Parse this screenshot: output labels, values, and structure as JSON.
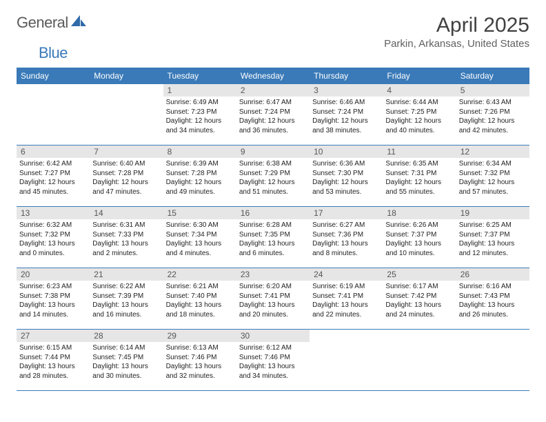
{
  "brand": {
    "part1": "General",
    "part2": "Blue"
  },
  "title": "April 2025",
  "location": "Parkin, Arkansas, United States",
  "calendar": {
    "type": "table",
    "header_bg": "#3a7ab8",
    "header_fg": "#ffffff",
    "daynum_bg": "#e6e6e6",
    "row_border": "#3a7ab8",
    "body_font_size": 10,
    "header_font_size": 12,
    "columns": [
      "Sunday",
      "Monday",
      "Tuesday",
      "Wednesday",
      "Thursday",
      "Friday",
      "Saturday"
    ]
  },
  "days": {
    "1": {
      "num": "1",
      "sunrise": "Sunrise: 6:49 AM",
      "sunset": "Sunset: 7:23 PM",
      "daylight": "Daylight: 12 hours and 34 minutes."
    },
    "2": {
      "num": "2",
      "sunrise": "Sunrise: 6:47 AM",
      "sunset": "Sunset: 7:24 PM",
      "daylight": "Daylight: 12 hours and 36 minutes."
    },
    "3": {
      "num": "3",
      "sunrise": "Sunrise: 6:46 AM",
      "sunset": "Sunset: 7:24 PM",
      "daylight": "Daylight: 12 hours and 38 minutes."
    },
    "4": {
      "num": "4",
      "sunrise": "Sunrise: 6:44 AM",
      "sunset": "Sunset: 7:25 PM",
      "daylight": "Daylight: 12 hours and 40 minutes."
    },
    "5": {
      "num": "5",
      "sunrise": "Sunrise: 6:43 AM",
      "sunset": "Sunset: 7:26 PM",
      "daylight": "Daylight: 12 hours and 42 minutes."
    },
    "6": {
      "num": "6",
      "sunrise": "Sunrise: 6:42 AM",
      "sunset": "Sunset: 7:27 PM",
      "daylight": "Daylight: 12 hours and 45 minutes."
    },
    "7": {
      "num": "7",
      "sunrise": "Sunrise: 6:40 AM",
      "sunset": "Sunset: 7:28 PM",
      "daylight": "Daylight: 12 hours and 47 minutes."
    },
    "8": {
      "num": "8",
      "sunrise": "Sunrise: 6:39 AM",
      "sunset": "Sunset: 7:28 PM",
      "daylight": "Daylight: 12 hours and 49 minutes."
    },
    "9": {
      "num": "9",
      "sunrise": "Sunrise: 6:38 AM",
      "sunset": "Sunset: 7:29 PM",
      "daylight": "Daylight: 12 hours and 51 minutes."
    },
    "10": {
      "num": "10",
      "sunrise": "Sunrise: 6:36 AM",
      "sunset": "Sunset: 7:30 PM",
      "daylight": "Daylight: 12 hours and 53 minutes."
    },
    "11": {
      "num": "11",
      "sunrise": "Sunrise: 6:35 AM",
      "sunset": "Sunset: 7:31 PM",
      "daylight": "Daylight: 12 hours and 55 minutes."
    },
    "12": {
      "num": "12",
      "sunrise": "Sunrise: 6:34 AM",
      "sunset": "Sunset: 7:32 PM",
      "daylight": "Daylight: 12 hours and 57 minutes."
    },
    "13": {
      "num": "13",
      "sunrise": "Sunrise: 6:32 AM",
      "sunset": "Sunset: 7:32 PM",
      "daylight": "Daylight: 13 hours and 0 minutes."
    },
    "14": {
      "num": "14",
      "sunrise": "Sunrise: 6:31 AM",
      "sunset": "Sunset: 7:33 PM",
      "daylight": "Daylight: 13 hours and 2 minutes."
    },
    "15": {
      "num": "15",
      "sunrise": "Sunrise: 6:30 AM",
      "sunset": "Sunset: 7:34 PM",
      "daylight": "Daylight: 13 hours and 4 minutes."
    },
    "16": {
      "num": "16",
      "sunrise": "Sunrise: 6:28 AM",
      "sunset": "Sunset: 7:35 PM",
      "daylight": "Daylight: 13 hours and 6 minutes."
    },
    "17": {
      "num": "17",
      "sunrise": "Sunrise: 6:27 AM",
      "sunset": "Sunset: 7:36 PM",
      "daylight": "Daylight: 13 hours and 8 minutes."
    },
    "18": {
      "num": "18",
      "sunrise": "Sunrise: 6:26 AM",
      "sunset": "Sunset: 7:37 PM",
      "daylight": "Daylight: 13 hours and 10 minutes."
    },
    "19": {
      "num": "19",
      "sunrise": "Sunrise: 6:25 AM",
      "sunset": "Sunset: 7:37 PM",
      "daylight": "Daylight: 13 hours and 12 minutes."
    },
    "20": {
      "num": "20",
      "sunrise": "Sunrise: 6:23 AM",
      "sunset": "Sunset: 7:38 PM",
      "daylight": "Daylight: 13 hours and 14 minutes."
    },
    "21": {
      "num": "21",
      "sunrise": "Sunrise: 6:22 AM",
      "sunset": "Sunset: 7:39 PM",
      "daylight": "Daylight: 13 hours and 16 minutes."
    },
    "22": {
      "num": "22",
      "sunrise": "Sunrise: 6:21 AM",
      "sunset": "Sunset: 7:40 PM",
      "daylight": "Daylight: 13 hours and 18 minutes."
    },
    "23": {
      "num": "23",
      "sunrise": "Sunrise: 6:20 AM",
      "sunset": "Sunset: 7:41 PM",
      "daylight": "Daylight: 13 hours and 20 minutes."
    },
    "24": {
      "num": "24",
      "sunrise": "Sunrise: 6:19 AM",
      "sunset": "Sunset: 7:41 PM",
      "daylight": "Daylight: 13 hours and 22 minutes."
    },
    "25": {
      "num": "25",
      "sunrise": "Sunrise: 6:17 AM",
      "sunset": "Sunset: 7:42 PM",
      "daylight": "Daylight: 13 hours and 24 minutes."
    },
    "26": {
      "num": "26",
      "sunrise": "Sunrise: 6:16 AM",
      "sunset": "Sunset: 7:43 PM",
      "daylight": "Daylight: 13 hours and 26 minutes."
    },
    "27": {
      "num": "27",
      "sunrise": "Sunrise: 6:15 AM",
      "sunset": "Sunset: 7:44 PM",
      "daylight": "Daylight: 13 hours and 28 minutes."
    },
    "28": {
      "num": "28",
      "sunrise": "Sunrise: 6:14 AM",
      "sunset": "Sunset: 7:45 PM",
      "daylight": "Daylight: 13 hours and 30 minutes."
    },
    "29": {
      "num": "29",
      "sunrise": "Sunrise: 6:13 AM",
      "sunset": "Sunset: 7:46 PM",
      "daylight": "Daylight: 13 hours and 32 minutes."
    },
    "30": {
      "num": "30",
      "sunrise": "Sunrise: 6:12 AM",
      "sunset": "Sunset: 7:46 PM",
      "daylight": "Daylight: 13 hours and 34 minutes."
    }
  },
  "layout": [
    [
      null,
      null,
      "1",
      "2",
      "3",
      "4",
      "5"
    ],
    [
      "6",
      "7",
      "8",
      "9",
      "10",
      "11",
      "12"
    ],
    [
      "13",
      "14",
      "15",
      "16",
      "17",
      "18",
      "19"
    ],
    [
      "20",
      "21",
      "22",
      "23",
      "24",
      "25",
      "26"
    ],
    [
      "27",
      "28",
      "29",
      "30",
      null,
      null,
      null
    ]
  ]
}
